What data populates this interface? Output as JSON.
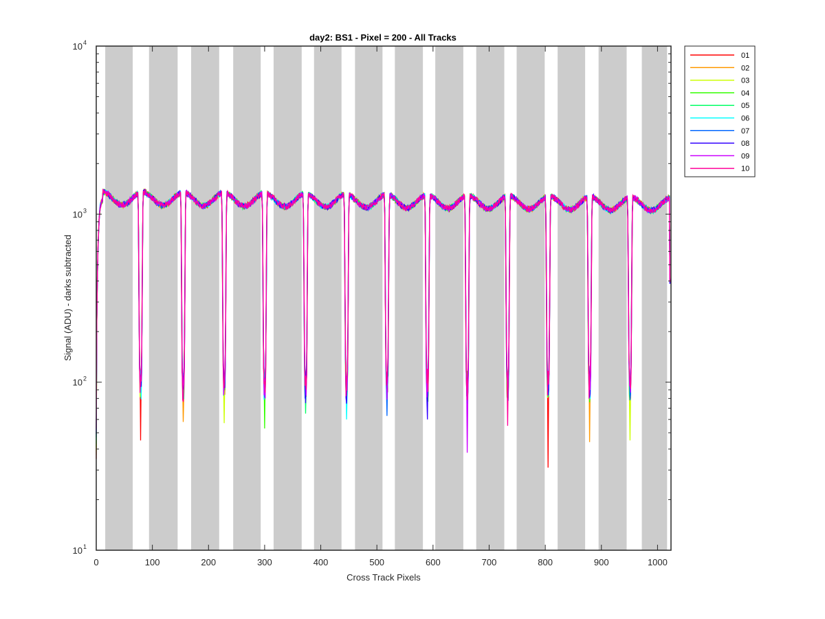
{
  "chart_data": {
    "type": "line",
    "title": "day2: BS1 - Pixel = 200 - All Tracks",
    "xlabel": "Cross Track Pixels",
    "ylabel": "Signal (ADU) - darks subtracted",
    "xlim": [
      0,
      1024
    ],
    "ylim": [
      10,
      10000
    ],
    "yscale": "log",
    "x_ticks": [
      0,
      100,
      200,
      300,
      400,
      500,
      600,
      700,
      800,
      900,
      1000
    ],
    "y_ticks": [
      10,
      100,
      1000,
      10000
    ],
    "y_tick_labels": [
      {
        "base": "10",
        "exp": "1"
      },
      {
        "base": "10",
        "exp": "2"
      },
      {
        "base": "10",
        "exp": "3"
      },
      {
        "base": "10",
        "exp": "4"
      }
    ],
    "grid": false,
    "legend_position": "outside-top-right",
    "shaded_bands": [
      [
        16,
        65
      ],
      [
        94,
        145
      ],
      [
        169,
        219
      ],
      [
        244,
        293
      ],
      [
        316,
        366
      ],
      [
        388,
        437
      ],
      [
        461,
        510
      ],
      [
        532,
        582
      ],
      [
        604,
        654
      ],
      [
        677,
        727
      ],
      [
        749,
        799
      ],
      [
        822,
        871
      ],
      [
        895,
        945
      ],
      [
        972,
        1017
      ]
    ],
    "dips": [
      {
        "x": 79,
        "min": 45
      },
      {
        "x": 155,
        "min": 58
      },
      {
        "x": 228,
        "min": 57
      },
      {
        "x": 300,
        "min": 53
      },
      {
        "x": 373,
        "min": 65
      },
      {
        "x": 446,
        "min": 60
      },
      {
        "x": 518,
        "min": 63
      },
      {
        "x": 590,
        "min": 60
      },
      {
        "x": 661,
        "min": 38
      },
      {
        "x": 733,
        "min": 55
      },
      {
        "x": 805,
        "min": 31
      },
      {
        "x": 879,
        "min": 44
      },
      {
        "x": 951,
        "min": 45
      }
    ],
    "plateau_level": 1250,
    "series": [
      {
        "name": "01",
        "color": "#ff0000"
      },
      {
        "name": "02",
        "color": "#ff9900"
      },
      {
        "name": "03",
        "color": "#ccff00"
      },
      {
        "name": "04",
        "color": "#33ff00"
      },
      {
        "name": "05",
        "color": "#00ff66"
      },
      {
        "name": "06",
        "color": "#00ffff"
      },
      {
        "name": "07",
        "color": "#0066ff"
      },
      {
        "name": "08",
        "color": "#3300ff"
      },
      {
        "name": "09",
        "color": "#cc00ff"
      },
      {
        "name": "10",
        "color": "#ff0099"
      }
    ]
  }
}
